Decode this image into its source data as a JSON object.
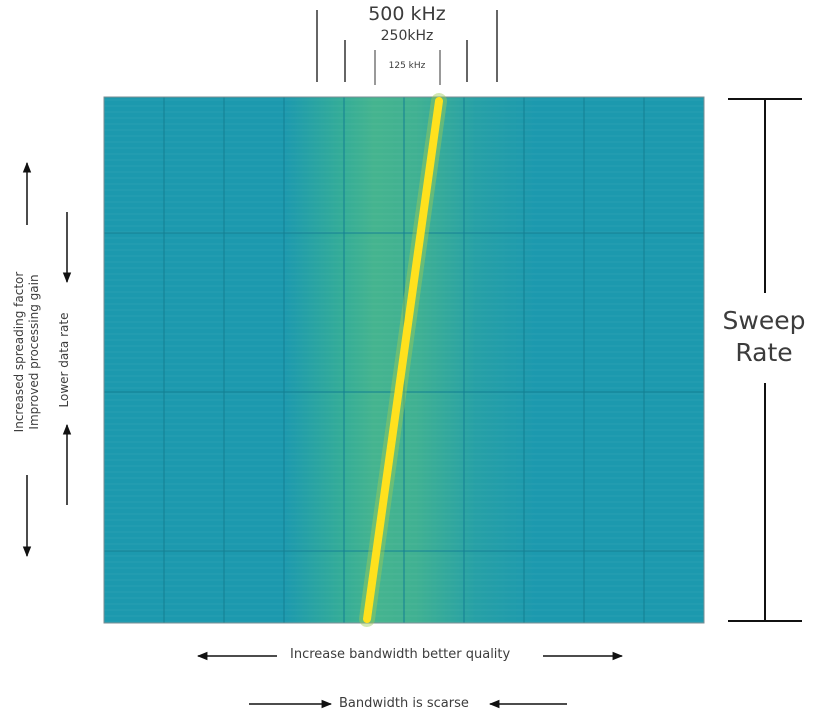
{
  "labels": {
    "bw_500": "500 kHz",
    "bw_250": "250kHz",
    "bw_125": "125 kHz",
    "sweep_rate": "Sweep Rate",
    "increase_bandwidth": "Increase bandwidth better quality",
    "bandwidth_scarse": "Bandwidth is scarse",
    "lower_data_rate": "Lower data rate",
    "spreading_factor": "Increased spreading factor",
    "processing_gain": "Improved processing gain"
  },
  "colors": {
    "background": "#1c99ae",
    "chirp": "#ffe11e",
    "chirp_glow": "#9ccd55",
    "arrow": "#111111"
  }
}
